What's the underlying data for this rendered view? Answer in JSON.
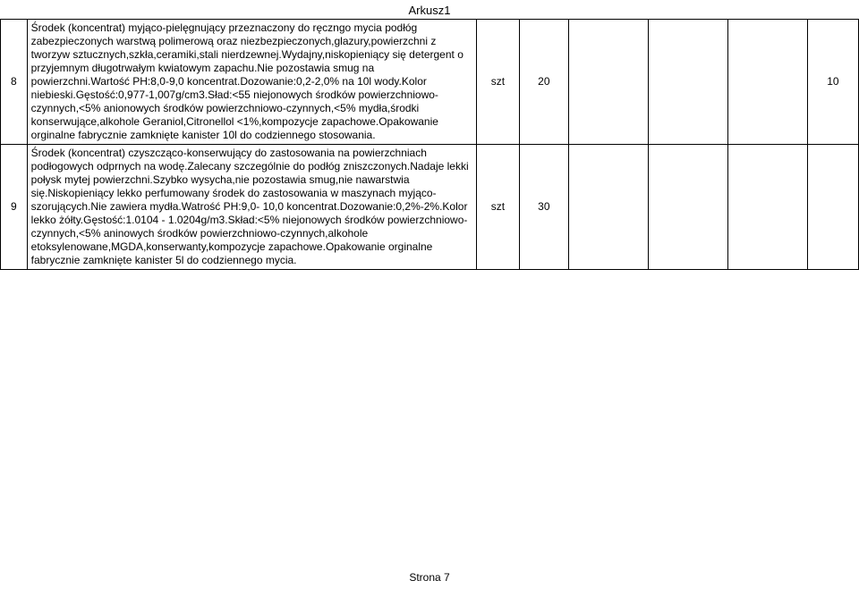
{
  "sheet_name": "Arkusz1",
  "footer": "Strona 7",
  "rows": [
    {
      "num": "8",
      "desc": "Środek (koncentrat) myjąco-pielęgnujący przeznaczony do ręczngo mycia podłóg zabezpieczonych warstwą polimerową oraz niezbezpieczonych,glazury,powierzchni z tworzyw sztucznych,szkła,ceramiki,stali nierdzewnej.Wydajny,niskopieniący się detergent o przyjemnym długotrwałym kwiatowym zapachu.Nie pozostawia smug na powierzchni.Wartość PH:8,0-9,0 koncentrat.Dozowanie:0,2-2,0% na 10l wody.Kolor niebieski.Gęstość:0,977-1,007g/cm3.Sład:<55 niejonowych środków powierzchniowo-czynnych,<5% anionowych środków powierzchniowo-czynnych,<5% mydła,środki konserwujące,alkohole Geraniol,Citronellol <1%,kompozycje zapachowe.Opakowanie orginalne fabrycznie zamknięte kanister 10l do codziennego stosowania.",
      "unit": "szt",
      "qty": "20",
      "last": "10"
    },
    {
      "num": "9",
      "desc": "Środek (koncentrat) czyszcząco-konserwujący do zastosowania na powierzchniach podłogowych odprnych na wodę.Zalecany szczególnie do podłóg zniszczonych.Nadaje lekki połysk mytej powierzchni.Szybko wysycha,nie pozostawia smug,nie nawarstwia się.Niskopieniący lekko perfumowany środek do zastosowania w maszynach myjąco-szorujących.Nie zawiera mydła.Watrość PH:9,0- 10,0 koncentrat.Dozowanie:0,2%-2%.Kolor lekko żółty.Gęstość:1.0104 - 1.0204g/m3.Skład:<5% niejonowych środków powierzchniowo-czynnych,<5% aninowych środków powierzchniowo-czynnych,alkohole etoksylenowane,MGDA,konserwanty,kompozycje zapachowe.Opakowanie orginalne fabrycznie zamknięte kanister 5l do codziennego mycia.",
      "unit": "szt",
      "qty": "30",
      "last": ""
    }
  ],
  "columns": {
    "num_width": 26,
    "desc_width": 440,
    "unit_width": 42,
    "qty_width": 48,
    "empty_width": 78,
    "last_width": 50
  },
  "colors": {
    "text": "#000000",
    "border": "#000000",
    "background": "#ffffff"
  },
  "font": {
    "family": "Arial",
    "body_size_pt": 9,
    "header_size_pt": 10
  }
}
